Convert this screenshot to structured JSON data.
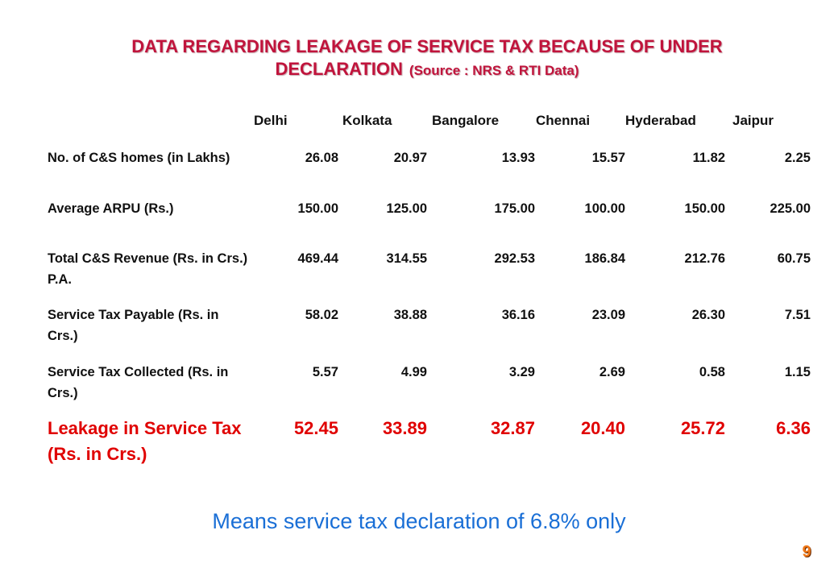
{
  "title": {
    "line1": "DATA REGARDING LEAKAGE OF SERVICE TAX BECAUSE OF UNDER",
    "line2": "DECLARATION",
    "source": "(Source : NRS & RTI Data)"
  },
  "columns": [
    "Delhi",
    "Kolkata",
    "Bangalore",
    "Chennai",
    "Hyderabad",
    "Jaipur"
  ],
  "rows": [
    {
      "label": "No. of C&S homes (in Lakhs)",
      "values": [
        "26.08",
        "20.97",
        "13.93",
        "15.57",
        "11.82",
        "2.25"
      ]
    },
    {
      "label": "Average ARPU (Rs.)",
      "values": [
        "150.00",
        "125.00",
        "175.00",
        "100.00",
        "150.00",
        "225.00"
      ]
    },
    {
      "label": "Total C&S Revenue (Rs. in Crs.) P.A.",
      "values": [
        "469.44",
        "314.55",
        "292.53",
        "186.84",
        "212.76",
        "60.75"
      ]
    },
    {
      "label": "Service Tax Payable (Rs. in Crs.)",
      "values": [
        "58.02",
        "38.88",
        "36.16",
        "23.09",
        "26.30",
        "7.51"
      ]
    },
    {
      "label": "Service Tax Collected (Rs. in Crs.)",
      "values": [
        "5.57",
        "4.99",
        "3.29",
        "2.69",
        "0.58",
        "1.15"
      ]
    },
    {
      "label": "Leakage in Service Tax (Rs. in Crs.)",
      "values": [
        "52.45",
        "33.89",
        "32.87",
        "20.40",
        "25.72",
        "6.36"
      ]
    }
  ],
  "footer": "Means service tax declaration of 6.8% only",
  "page_number": "9",
  "colors": {
    "title": "#c0143c",
    "leakage": "#e00000",
    "footer": "#1a6fd6",
    "page_number": "#f07818"
  }
}
